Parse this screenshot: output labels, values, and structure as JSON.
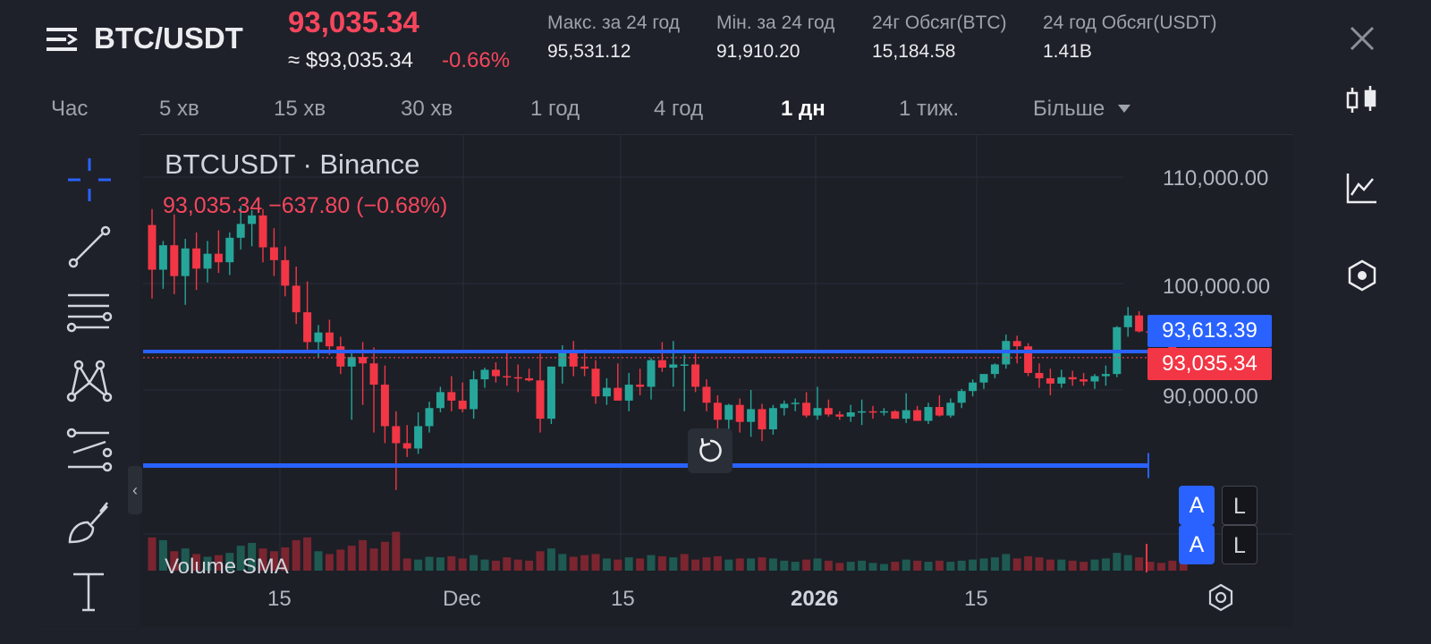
{
  "header": {
    "pair": "BTC/USDT",
    "last_price": "93,035.34",
    "approx_price": "≈ $93,035.34",
    "change_percent": "-0.66%",
    "stats": [
      {
        "label": "Макс. за 24 год",
        "value": "95,531.12"
      },
      {
        "label": "Мін. за 24 год",
        "value": "91,910.20"
      },
      {
        "label": "24г Обсяг(BTC)",
        "value": "15,184.58"
      },
      {
        "label": "24 год Обсяг(USDT)",
        "value": "1.41B"
      }
    ]
  },
  "timeframes": {
    "items": [
      "Час",
      "5 хв",
      "15 хв",
      "30 хв",
      "1 год",
      "4 год",
      "1 дн",
      "1 тиж.",
      "Більше"
    ],
    "active": "1 дн"
  },
  "legend": {
    "title": "BTCUSDT · Binance",
    "values": "93,035.34  −637.80 (−0.68%)",
    "volume_label": "Volume SMA"
  },
  "price_axis": {
    "labels": [
      "110,000.00",
      "100,000.00",
      "90,000.00"
    ],
    "tag_blue": "93,613.39",
    "tag_red": "93,035.34",
    "auto_label": "A",
    "log_label": "L"
  },
  "time_axis": {
    "labels": [
      "15",
      "Dec",
      "15",
      "2026",
      "15"
    ]
  },
  "colors": {
    "up": "#26a69a",
    "down": "#f23645",
    "accent": "#2962ff",
    "background": "#1e2129"
  },
  "chart_data": {
    "type": "candlestick",
    "title": "BTCUSDT · Binance",
    "x_ticks": [
      "15",
      "Dec",
      "15",
      "2026",
      "15"
    ],
    "y_ticks": [
      110000,
      100000,
      90000
    ],
    "ylim": [
      84000,
      114000
    ],
    "horizontal_lines": [
      93613.39,
      93035.34,
      82900
    ],
    "candles": [
      [
        105500,
        107000,
        98600,
        101300
      ],
      [
        101300,
        104000,
        99500,
        103600
      ],
      [
        103600,
        106500,
        99000,
        100700
      ],
      [
        100700,
        104200,
        98000,
        103300
      ],
      [
        103300,
        104800,
        99400,
        101400
      ],
      [
        101400,
        104000,
        100100,
        102800
      ],
      [
        102800,
        105000,
        101000,
        102000
      ],
      [
        102000,
        104800,
        100800,
        104300
      ],
      [
        104300,
        107300,
        103200,
        105600
      ],
      [
        105600,
        106900,
        103500,
        106400
      ],
      [
        106400,
        107000,
        102000,
        103400
      ],
      [
        103400,
        105200,
        100700,
        102200
      ],
      [
        102200,
        103500,
        98800,
        99800
      ],
      [
        99800,
        101600,
        96200,
        97300
      ],
      [
        97300,
        100200,
        93800,
        94500
      ],
      [
        94500,
        96100,
        93000,
        95400
      ],
      [
        95400,
        96600,
        93300,
        94100
      ],
      [
        94100,
        95000,
        91500,
        92200
      ],
      [
        92200,
        93800,
        87200,
        93100
      ],
      [
        93100,
        94500,
        88600,
        92500
      ],
      [
        92500,
        94000,
        86000,
        90500
      ],
      [
        90500,
        92300,
        85000,
        86600
      ],
      [
        86600,
        88000,
        80600,
        85000
      ],
      [
        85000,
        86700,
        83700,
        84500
      ],
      [
        84500,
        87900,
        84000,
        86600
      ],
      [
        86600,
        88900,
        86000,
        88300
      ],
      [
        88300,
        90300,
        87900,
        89800
      ],
      [
        89800,
        91300,
        88000,
        89000
      ],
      [
        89000,
        90700,
        87900,
        88200
      ],
      [
        88200,
        91800,
        87300,
        91000
      ],
      [
        91000,
        92100,
        90200,
        91900
      ],
      [
        91900,
        92600,
        90700,
        91300
      ],
      [
        91300,
        93600,
        90400,
        91200
      ],
      [
        91200,
        92400,
        89800,
        91100
      ],
      [
        91100,
        92000,
        90800,
        90900
      ],
      [
        90900,
        93400,
        86000,
        87300
      ],
      [
        87300,
        92200,
        86800,
        92200
      ],
      [
        92200,
        94200,
        90600,
        93500
      ],
      [
        93500,
        94600,
        91300,
        92200
      ],
      [
        92200,
        93800,
        91300,
        92000
      ],
      [
        92000,
        92800,
        88700,
        89400
      ],
      [
        89400,
        91100,
        88600,
        90200
      ],
      [
        90200,
        92500,
        89000,
        89000
      ],
      [
        89000,
        91600,
        88000,
        90500
      ],
      [
        90500,
        92000,
        89500,
        90300
      ],
      [
        90300,
        93000,
        89100,
        92800
      ],
      [
        92800,
        94500,
        91700,
        92100
      ],
      [
        92100,
        94600,
        90300,
        92400
      ],
      [
        92400,
        93300,
        88000,
        92400
      ],
      [
        92400,
        93400,
        89800,
        90300
      ],
      [
        90300,
        91000,
        88000,
        88800
      ],
      [
        88800,
        89500,
        86100,
        87200
      ],
      [
        87200,
        88700,
        85600,
        88600
      ],
      [
        88600,
        89200,
        86000,
        87000
      ],
      [
        87000,
        90000,
        85600,
        88200
      ],
      [
        88200,
        88700,
        85200,
        86300
      ],
      [
        86300,
        88600,
        85800,
        88300
      ],
      [
        88300,
        89000,
        87600,
        88700
      ],
      [
        88700,
        89200,
        88000,
        88800
      ],
      [
        88800,
        89800,
        87400,
        87600
      ],
      [
        87600,
        90300,
        87200,
        88300
      ],
      [
        88300,
        89100,
        87500,
        87700
      ],
      [
        87700,
        88000,
        87200,
        87500
      ],
      [
        87500,
        88600,
        87000,
        87900
      ],
      [
        87900,
        89100,
        86700,
        88000
      ],
      [
        88000,
        88500,
        87300,
        87900
      ],
      [
        87900,
        88300,
        87600,
        88000
      ],
      [
        88000,
        88100,
        87300,
        87300
      ],
      [
        87300,
        89700,
        86900,
        88100
      ],
      [
        88100,
        88500,
        87100,
        87100
      ],
      [
        87100,
        88800,
        86800,
        88400
      ],
      [
        88400,
        89500,
        87500,
        87600
      ],
      [
        87600,
        89200,
        87400,
        88800
      ],
      [
        88800,
        90100,
        88300,
        89900
      ],
      [
        89900,
        91000,
        89400,
        90700
      ],
      [
        90700,
        91300,
        90100,
        91500
      ],
      [
        91500,
        92500,
        91100,
        92400
      ],
      [
        92400,
        95200,
        92000,
        94600
      ],
      [
        94600,
        95100,
        92500,
        94100
      ],
      [
        94100,
        94400,
        91300,
        91600
      ],
      [
        91600,
        92500,
        90200,
        91100
      ],
      [
        91100,
        92000,
        89500,
        90600
      ],
      [
        90600,
        91900,
        90200,
        91200
      ],
      [
        91200,
        91800,
        90400,
        91000
      ],
      [
        91000,
        91600,
        90400,
        90800
      ],
      [
        90800,
        91500,
        90100,
        91300
      ],
      [
        91300,
        92300,
        90400,
        91500
      ],
      [
        91500,
        96000,
        91200,
        95900
      ],
      [
        95900,
        97800,
        95000,
        97000
      ],
      [
        97000,
        97400,
        95400,
        95500
      ],
      [
        95500,
        95800,
        94300,
        95400
      ],
      [
        95400,
        95600,
        94200,
        95200
      ],
      [
        95200,
        95400,
        93200,
        93600
      ],
      [
        93600,
        93800,
        92000,
        93035
      ]
    ],
    "volume": [
      [
        60,
        "down"
      ],
      [
        55,
        "up"
      ],
      [
        35,
        "down"
      ],
      [
        40,
        "up"
      ],
      [
        30,
        "down"
      ],
      [
        25,
        "up"
      ],
      [
        28,
        "down"
      ],
      [
        32,
        "up"
      ],
      [
        45,
        "up"
      ],
      [
        50,
        "up"
      ],
      [
        40,
        "down"
      ],
      [
        35,
        "down"
      ],
      [
        42,
        "down"
      ],
      [
        55,
        "down"
      ],
      [
        60,
        "down"
      ],
      [
        35,
        "up"
      ],
      [
        30,
        "down"
      ],
      [
        38,
        "down"
      ],
      [
        45,
        "down"
      ],
      [
        55,
        "down"
      ],
      [
        40,
        "down"
      ],
      [
        52,
        "down"
      ],
      [
        70,
        "down"
      ],
      [
        22,
        "down"
      ],
      [
        20,
        "up"
      ],
      [
        25,
        "up"
      ],
      [
        24,
        "up"
      ],
      [
        26,
        "down"
      ],
      [
        22,
        "down"
      ],
      [
        28,
        "up"
      ],
      [
        20,
        "up"
      ],
      [
        18,
        "down"
      ],
      [
        24,
        "down"
      ],
      [
        20,
        "down"
      ],
      [
        18,
        "down"
      ],
      [
        35,
        "down"
      ],
      [
        40,
        "up"
      ],
      [
        30,
        "up"
      ],
      [
        25,
        "down"
      ],
      [
        28,
        "down"
      ],
      [
        30,
        "down"
      ],
      [
        22,
        "up"
      ],
      [
        20,
        "down"
      ],
      [
        24,
        "up"
      ],
      [
        22,
        "down"
      ],
      [
        28,
        "up"
      ],
      [
        26,
        "down"
      ],
      [
        24,
        "up"
      ],
      [
        30,
        "down"
      ],
      [
        20,
        "down"
      ],
      [
        24,
        "down"
      ],
      [
        26,
        "down"
      ],
      [
        20,
        "up"
      ],
      [
        22,
        "down"
      ],
      [
        22,
        "up"
      ],
      [
        24,
        "down"
      ],
      [
        22,
        "up"
      ],
      [
        18,
        "up"
      ],
      [
        16,
        "up"
      ],
      [
        20,
        "down"
      ],
      [
        22,
        "up"
      ],
      [
        18,
        "down"
      ],
      [
        14,
        "down"
      ],
      [
        16,
        "up"
      ],
      [
        18,
        "up"
      ],
      [
        14,
        "up"
      ],
      [
        12,
        "up"
      ],
      [
        16,
        "down"
      ],
      [
        20,
        "up"
      ],
      [
        18,
        "down"
      ],
      [
        16,
        "up"
      ],
      [
        18,
        "down"
      ],
      [
        16,
        "up"
      ],
      [
        18,
        "up"
      ],
      [
        20,
        "up"
      ],
      [
        22,
        "up"
      ],
      [
        24,
        "up"
      ],
      [
        30,
        "up"
      ],
      [
        22,
        "down"
      ],
      [
        26,
        "down"
      ],
      [
        24,
        "down"
      ],
      [
        20,
        "down"
      ],
      [
        20,
        "up"
      ],
      [
        18,
        "down"
      ],
      [
        16,
        "down"
      ],
      [
        20,
        "up"
      ],
      [
        22,
        "up"
      ],
      [
        32,
        "up"
      ],
      [
        28,
        "up"
      ],
      [
        24,
        "down"
      ],
      [
        16,
        "down"
      ],
      [
        14,
        "down"
      ],
      [
        18,
        "down"
      ],
      [
        20,
        "down"
      ]
    ]
  }
}
